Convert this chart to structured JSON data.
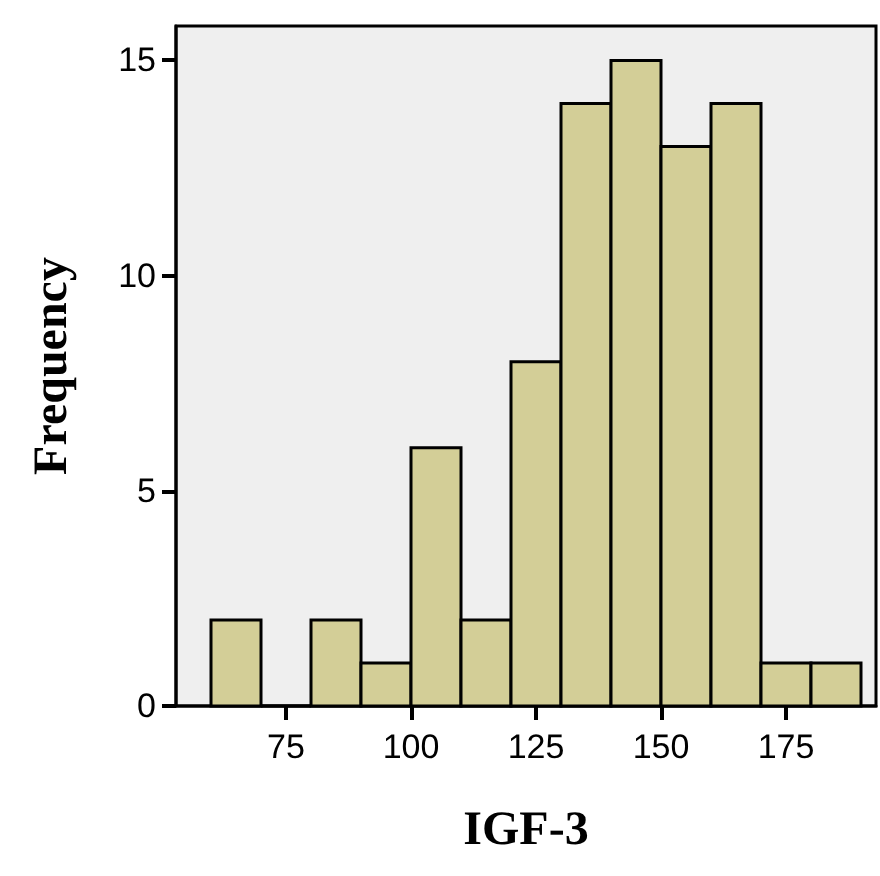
{
  "chart_data": {
    "type": "histogram",
    "xlabel": "IGF-3",
    "ylabel": "Frequency",
    "bins": [
      60,
      70,
      80,
      90,
      100,
      110,
      120,
      130,
      140,
      150,
      160,
      170,
      180,
      190
    ],
    "values": [
      2,
      0,
      2,
      1,
      6,
      2,
      8,
      14,
      15,
      13,
      14,
      1,
      1
    ],
    "color": "#d3ce97",
    "xlim": [
      53,
      193
    ],
    "xticks": [
      75,
      100,
      125,
      150,
      175
    ],
    "ylim": [
      0,
      15.8
    ],
    "yticks": [
      0,
      5,
      10,
      15
    ],
    "grid": false
  }
}
